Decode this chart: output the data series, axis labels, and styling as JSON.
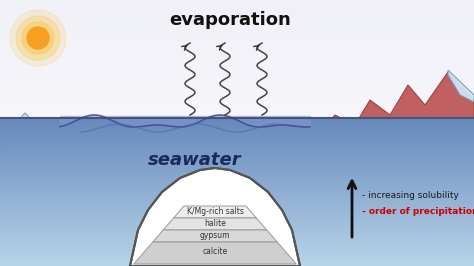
{
  "bg_color": "#ffffff",
  "evaporation_text": "evaporation",
  "seawater_text": "seawater",
  "layers": [
    "K/Mg-rich salts",
    "halite",
    "gypsum",
    "calcite"
  ],
  "solubility_text": "- increasing solubility",
  "precipitation_text": "- order of precipitation",
  "solubility_color": "#1a1a1a",
  "precipitation_color": "#cc0000",
  "mountain_color": "#c06060",
  "mountain_edge": "#994444",
  "water_top_color": "#6688bb",
  "water_bottom_color": "#b8d4e8",
  "sky_top_color": "#e8eef5",
  "sun_inner": "#f5a020",
  "sun_outer": "#f8cc60",
  "snow_color": "#d0e8f8",
  "snow_edge": "#7799bb",
  "layer_fill": "#f0f0f0",
  "layer_edge": "#888888",
  "basin_edge": "#555555",
  "evap_color": "#333333",
  "arrow_color": "#111111"
}
